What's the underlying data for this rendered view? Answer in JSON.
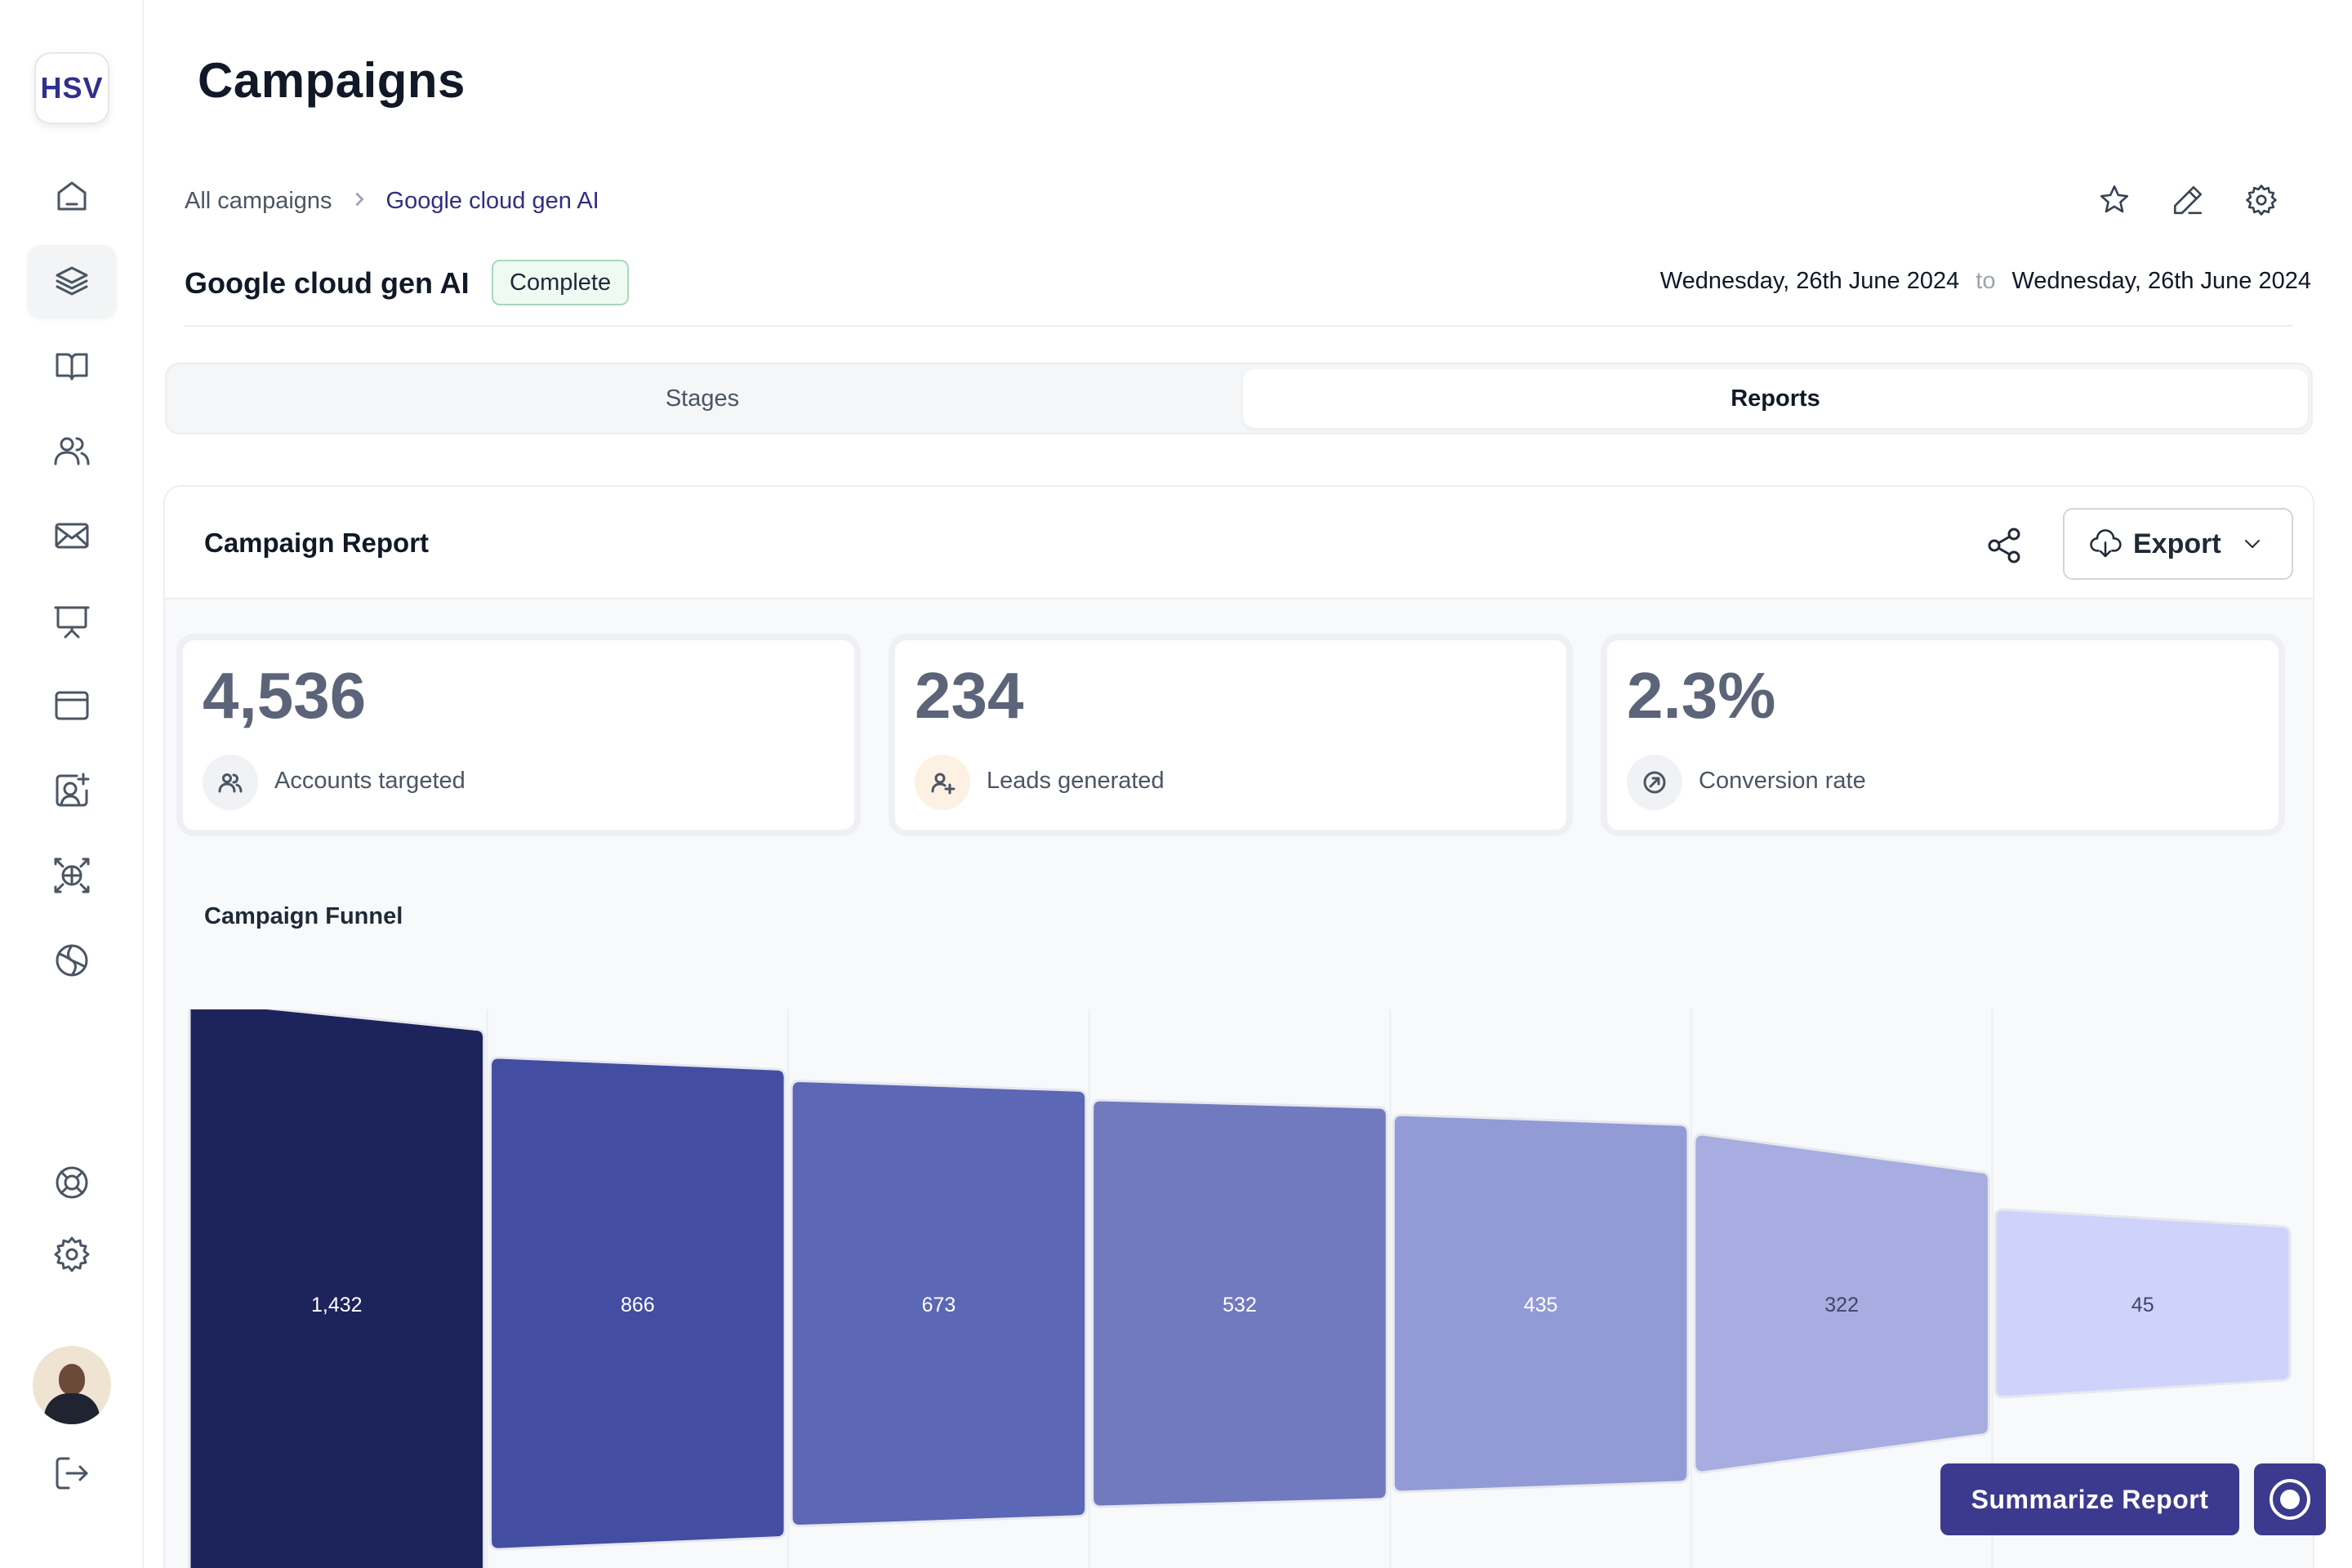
{
  "logo": {
    "text": "HSV"
  },
  "sidebar": {
    "items": [
      {
        "icon": "home-icon"
      },
      {
        "icon": "layers-icon",
        "active": true
      },
      {
        "icon": "book-icon"
      },
      {
        "icon": "users-icon"
      },
      {
        "icon": "mail-icon"
      },
      {
        "icon": "presentation-icon"
      },
      {
        "icon": "browser-icon"
      },
      {
        "icon": "user-add-icon"
      },
      {
        "icon": "network-icon"
      },
      {
        "icon": "aperture-icon"
      }
    ],
    "bottom_items": [
      {
        "icon": "help-buoy-icon"
      },
      {
        "icon": "gear-icon"
      },
      {
        "icon": "logout-icon"
      }
    ]
  },
  "header": {
    "title": "Campaigns",
    "breadcrumb": {
      "parent": "All campaigns",
      "current": "Google cloud gen AI"
    },
    "campaign_name": "Google cloud gen AI",
    "status": "Complete",
    "date_from": "Wednesday, 26th June 2024",
    "date_to_word": "to",
    "date_to": "Wednesday, 26th June 2024"
  },
  "tabs": {
    "stages": "Stages",
    "reports": "Reports",
    "active": "Reports"
  },
  "report": {
    "title": "Campaign Report",
    "export_label": "Export",
    "stats": [
      {
        "value": "4,536",
        "label": "Accounts targeted",
        "icon": "users-icon"
      },
      {
        "value": "234",
        "label": "Leads generated",
        "icon": "user-add-icon"
      },
      {
        "value": "2.3%",
        "label": "Conversion rate",
        "icon": "gauge-icon"
      }
    ],
    "funnel_title": "Campaign Funnel"
  },
  "chart_data": {
    "type": "funnel",
    "title": "Campaign Funnel",
    "values": [
      1432,
      866,
      673,
      532,
      435,
      322,
      45
    ],
    "labels": [
      "1,432",
      "866",
      "673",
      "532",
      "435",
      "322",
      "45"
    ],
    "colors": [
      "#1c245b",
      "#434ea3",
      "#5c67b5",
      "#717abf",
      "#929bd6",
      "#a7ade0",
      "#cfd3fb"
    ]
  },
  "actions": {
    "summarize": "Summarize Report"
  }
}
